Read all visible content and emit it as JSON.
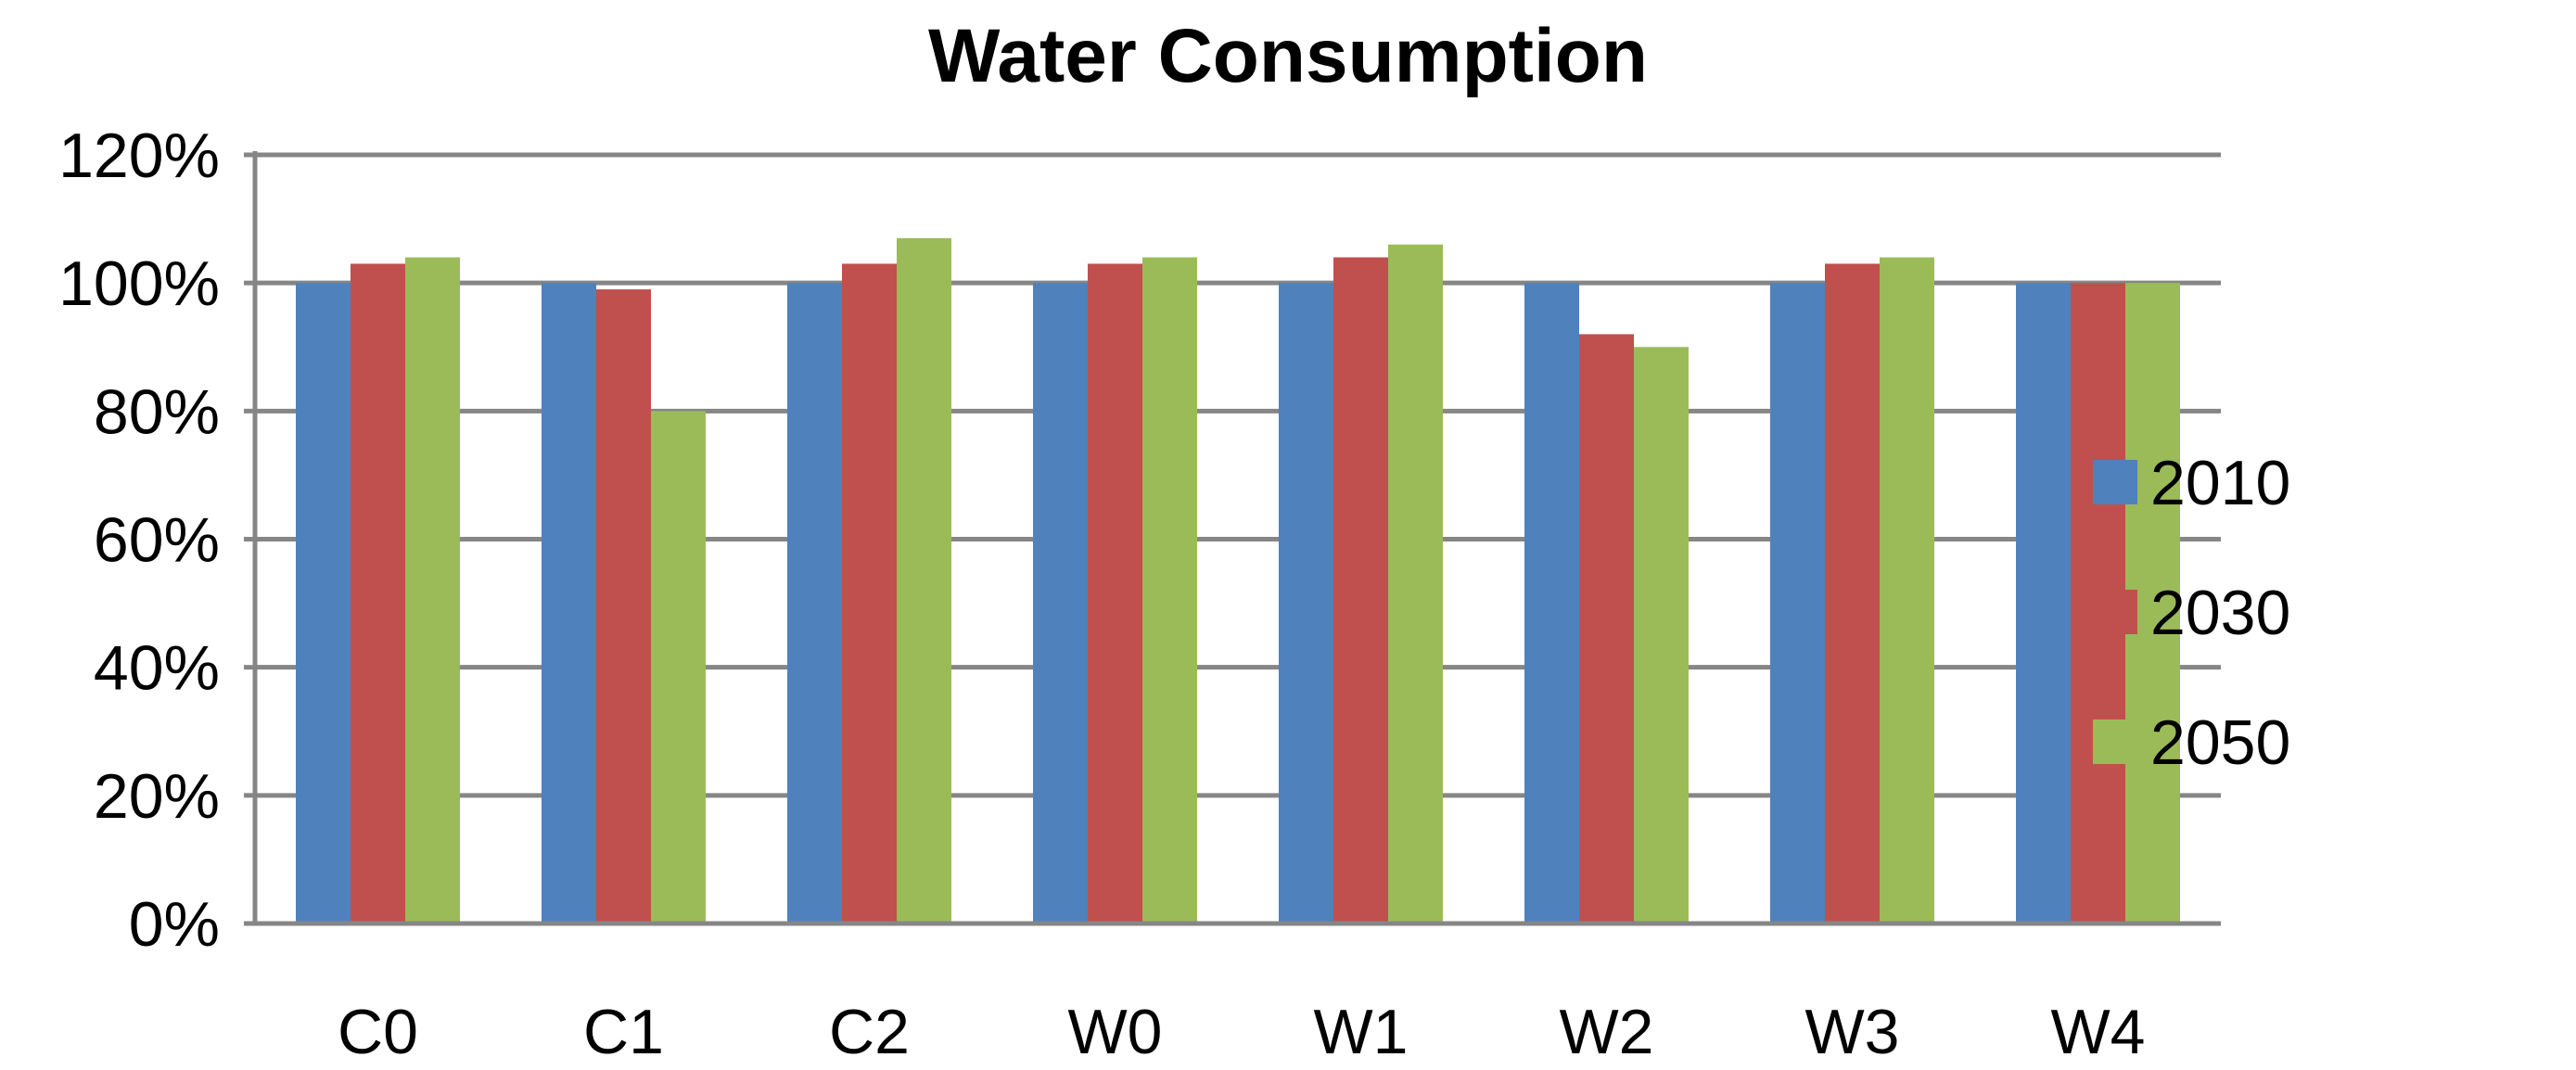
{
  "chart_data": {
    "type": "bar",
    "title": "Water Consumption",
    "xlabel": "",
    "ylabel": "",
    "categories": [
      "C0",
      "C1",
      "C2",
      "W0",
      "W1",
      "W2",
      "W3",
      "W4"
    ],
    "series": [
      {
        "name": "2010",
        "color": "#4F81BD",
        "values": [
          100,
          100,
          100,
          100,
          100,
          100,
          100,
          100
        ]
      },
      {
        "name": "2030",
        "color": "#C0504D",
        "values": [
          103,
          99,
          103,
          103,
          104,
          92,
          103,
          100
        ]
      },
      {
        "name": "2050",
        "color": "#9BBB59",
        "values": [
          104,
          80,
          107,
          104,
          106,
          90,
          104,
          100
        ]
      }
    ],
    "ylim": [
      0,
      120
    ],
    "yticks": [
      0,
      20,
      40,
      60,
      80,
      100,
      120
    ],
    "ytick_labels": [
      "0%",
      "20%",
      "40%",
      "60%",
      "80%",
      "100%",
      "120%"
    ],
    "grid": true,
    "legend_position": "right"
  }
}
